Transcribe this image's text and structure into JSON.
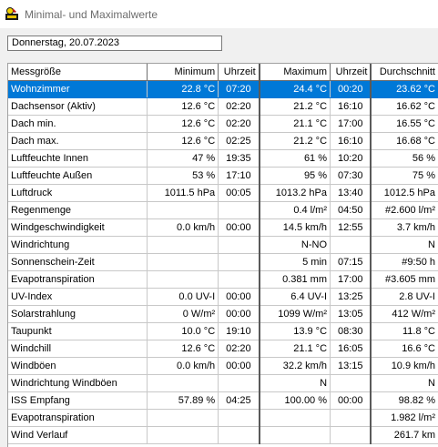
{
  "window": {
    "title": "Minimal- und Maximalwerte"
  },
  "date_field": {
    "value": "Donnerstag, 20.07.2023"
  },
  "table": {
    "headers": [
      "Messgröße",
      "Minimum",
      "Uhrzeit",
      "Maximum",
      "Uhrzeit",
      "Durchschnitt"
    ],
    "rows": [
      [
        "Wohnzimmer",
        "22.8 °C",
        "07:20",
        "24.4 °C",
        "00:20",
        "23.62 °C"
      ],
      [
        "Dachsensor (Aktiv)",
        "12.6 °C",
        "02:20",
        "21.2 °C",
        "16:10",
        "16.62 °C"
      ],
      [
        "Dach min.",
        "12.6 °C",
        "02:20",
        "21.1 °C",
        "17:00",
        "16.55 °C"
      ],
      [
        "Dach max.",
        "12.6 °C",
        "02:25",
        "21.2 °C",
        "16:10",
        "16.68 °C"
      ],
      [
        "Luftfeuchte Innen",
        "47 %",
        "19:35",
        "61 %",
        "10:20",
        "56 %"
      ],
      [
        "Luftfeuchte Außen",
        "53 %",
        "17:10",
        "95 %",
        "07:30",
        "75 %"
      ],
      [
        "Luftdruck",
        "1011.5 hPa",
        "00:05",
        "1013.2 hPa",
        "13:40",
        "1012.5 hPa"
      ],
      [
        "Regenmenge",
        "",
        "",
        "0.4 l/m²",
        "04:50",
        "#2.600 l/m²"
      ],
      [
        "Windgeschwindigkeit",
        "0.0 km/h",
        "00:00",
        "14.5 km/h",
        "12:55",
        "3.7 km/h"
      ],
      [
        "Windrichtung",
        "",
        "",
        "N-NO",
        "",
        "N"
      ],
      [
        "Sonnenschein-Zeit",
        "",
        "",
        "5 min",
        "07:15",
        "#9:50 h"
      ],
      [
        "Evapotranspiration",
        "",
        "",
        "0.381 mm",
        "17:00",
        "#3.605 mm"
      ],
      [
        "UV-Index",
        "0.0 UV-I",
        "00:00",
        "6.4 UV-I",
        "13:25",
        "2.8 UV-I"
      ],
      [
        "Solarstrahlung",
        "0 W/m²",
        "00:00",
        "1099 W/m²",
        "13:05",
        "412 W/m²"
      ],
      [
        "Taupunkt",
        "10.0 °C",
        "19:10",
        "13.9 °C",
        "08:30",
        "11.8 °C"
      ],
      [
        "Windchill",
        "12.6 °C",
        "02:20",
        "21.1 °C",
        "16:05",
        "16.6 °C"
      ],
      [
        "Windböen",
        "0.0 km/h",
        "00:00",
        "32.2 km/h",
        "13:15",
        "10.9 km/h"
      ],
      [
        "Windrichtung Windböen",
        "",
        "",
        "N",
        "",
        "N"
      ],
      [
        "ISS Empfang",
        "57.89 %",
        "04:25",
        "100.00 %",
        "00:00",
        "98.82 %"
      ],
      [
        "Evapotranspiration",
        "",
        "",
        "",
        "",
        "1.982 l/m²"
      ],
      [
        "Wind Verlauf",
        "",
        "",
        "",
        "",
        "261.7 km"
      ]
    ],
    "selected_row": 0
  },
  "colors": {
    "selection": "#0078d7",
    "title_text": "#6d6d6d"
  }
}
